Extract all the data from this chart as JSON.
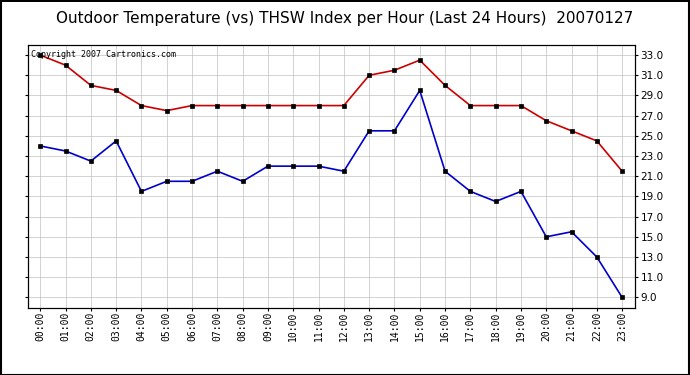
{
  "title": "Outdoor Temperature (vs) THSW Index per Hour (Last 24 Hours)  20070127",
  "copyright": "Copyright 2007 Cartronics.com",
  "hours": [
    "00:00",
    "01:00",
    "02:00",
    "03:00",
    "04:00",
    "05:00",
    "06:00",
    "07:00",
    "08:00",
    "09:00",
    "10:00",
    "11:00",
    "12:00",
    "13:00",
    "14:00",
    "15:00",
    "16:00",
    "17:00",
    "18:00",
    "19:00",
    "20:00",
    "21:00",
    "22:00",
    "23:00"
  ],
  "thsw": [
    33.0,
    32.0,
    30.0,
    29.5,
    28.0,
    27.5,
    28.0,
    28.0,
    28.0,
    28.0,
    28.0,
    28.0,
    28.0,
    31.0,
    31.5,
    32.5,
    30.0,
    28.0,
    28.0,
    28.0,
    26.5,
    25.5,
    24.5,
    21.5
  ],
  "outdoor_temp": [
    24.0,
    23.5,
    22.5,
    24.5,
    19.5,
    20.5,
    20.5,
    21.5,
    20.5,
    22.0,
    22.0,
    22.0,
    21.5,
    25.5,
    25.5,
    29.5,
    21.5,
    19.5,
    18.5,
    19.5,
    15.0,
    15.5,
    13.0,
    9.0
  ],
  "thsw_color": "#cc0000",
  "temp_color": "#0000cc",
  "background_color": "#ffffff",
  "grid_color": "#c0c0c0",
  "ylim": [
    8.0,
    34.0
  ],
  "yticks": [
    9.0,
    11.0,
    13.0,
    15.0,
    17.0,
    19.0,
    21.0,
    23.0,
    25.0,
    27.0,
    29.0,
    31.0,
    33.0
  ],
  "title_fontsize": 11,
  "copyright_fontsize": 6,
  "marker_size": 3,
  "linewidth": 1.2
}
